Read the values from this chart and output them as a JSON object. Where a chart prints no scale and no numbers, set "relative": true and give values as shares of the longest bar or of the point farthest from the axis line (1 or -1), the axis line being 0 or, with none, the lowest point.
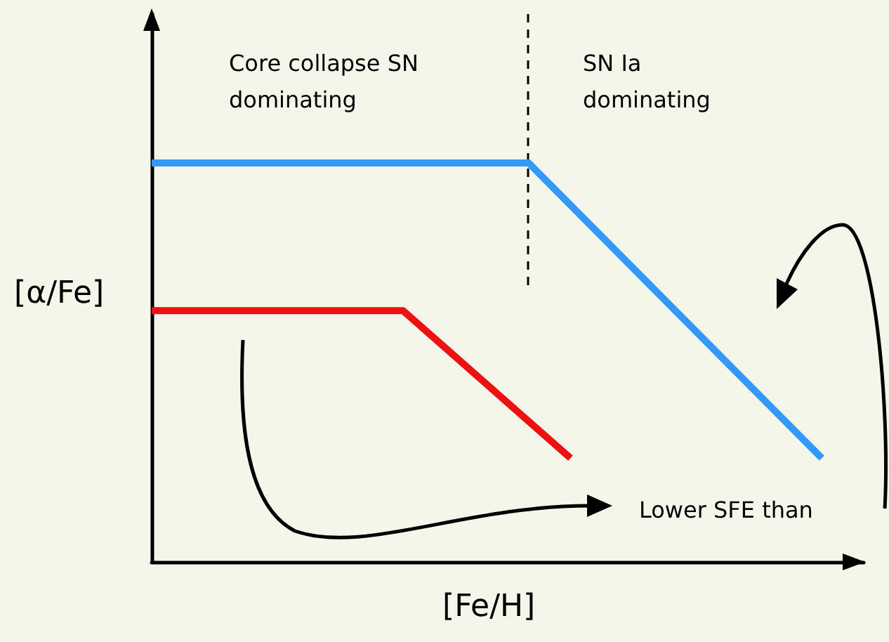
{
  "chart_data": {
    "type": "line",
    "relative": true,
    "xlabel": "[Fe/H]",
    "ylabel": "[α/Fe]",
    "categories": [
      null,
      null,
      null,
      null,
      null,
      null,
      null,
      null,
      null,
      null,
      null,
      null,
      null,
      null,
      null,
      null,
      null,
      null
    ],
    "series": [
      {
        "color": "#3399ff",
        "values": [
          1,
          null,
          null,
          null,
          null,
          null,
          null,
          null,
          null,
          1,
          null,
          null,
          null,
          null,
          null,
          null,
          0.26,
          null
        ]
      },
      {
        "color": "#ee1111",
        "values": [
          0.63,
          null,
          null,
          null,
          null,
          null,
          0.63,
          null,
          null,
          null,
          0.26,
          null,
          null,
          null,
          null,
          null,
          null,
          null
        ]
      }
    ],
    "annotations": [
      "Core collapse SN dominating",
      "SN Ia dominating",
      "Lower SFE than"
    ],
    "marker": "none",
    "line_style": "solid"
  }
}
